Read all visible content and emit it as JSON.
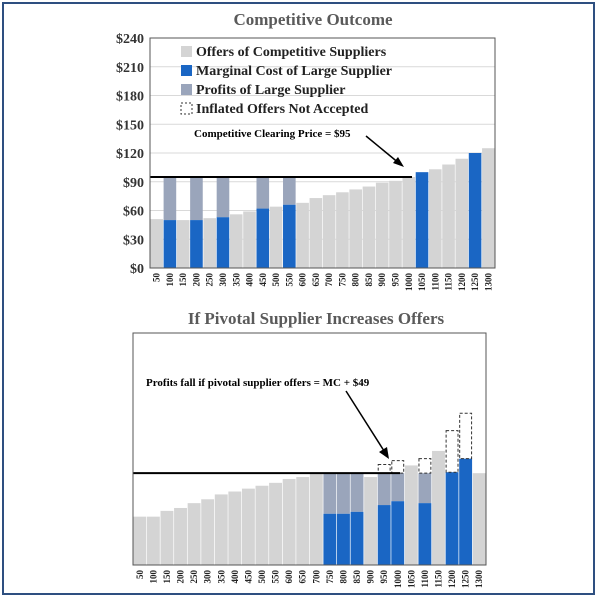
{
  "colors": {
    "competitive": "#d4d4d4",
    "mc": "#1a66c4",
    "profit": "#9aa5bb",
    "line": "#000000"
  },
  "chart_data": [
    {
      "type": "bar",
      "title": "Competitive Outcome",
      "ylim": [
        0,
        240
      ],
      "yticks": [
        0,
        30,
        60,
        90,
        120,
        150,
        180,
        210,
        240
      ],
      "ytick_labels": [
        "$0",
        "$30",
        "$60",
        "$90",
        "$120",
        "$150",
        "$180",
        "$210",
        "$240"
      ],
      "xtick_labels": [
        "50",
        "100",
        "150",
        "200",
        "250",
        "300",
        "350",
        "400",
        "450",
        "500",
        "550",
        "600",
        "650",
        "700",
        "750",
        "800",
        "850",
        "900",
        "950",
        "1000",
        "1050",
        "1100",
        "1150",
        "1200",
        "1250",
        "1300"
      ],
      "clearing_price": 95,
      "legend": [
        {
          "label": "Offers of Competitive Suppliers",
          "key": "competitive"
        },
        {
          "label": "Marginal Cost of Large Supplier",
          "key": "mc"
        },
        {
          "label": "Profits of Large Supplier",
          "key": "profit"
        },
        {
          "label": "Inflated Offers Not Accepted",
          "key": "inflated"
        }
      ],
      "annotation": "Competitive Clearing Price = $95",
      "bars": [
        {
          "owner": "competitive",
          "offer": 51
        },
        {
          "owner": "large",
          "offer": 50
        },
        {
          "owner": "competitive",
          "offer": 50
        },
        {
          "owner": "large",
          "offer": 50
        },
        {
          "owner": "competitive",
          "offer": 52
        },
        {
          "owner": "large",
          "offer": 53
        },
        {
          "owner": "competitive",
          "offer": 56
        },
        {
          "owner": "competitive",
          "offer": 59
        },
        {
          "owner": "large",
          "offer": 62
        },
        {
          "owner": "competitive",
          "offer": 64
        },
        {
          "owner": "large",
          "offer": 66
        },
        {
          "owner": "competitive",
          "offer": 68
        },
        {
          "owner": "competitive",
          "offer": 73
        },
        {
          "owner": "competitive",
          "offer": 76
        },
        {
          "owner": "competitive",
          "offer": 79
        },
        {
          "owner": "competitive",
          "offer": 82
        },
        {
          "owner": "competitive",
          "offer": 85
        },
        {
          "owner": "competitive",
          "offer": 89
        },
        {
          "owner": "competitive",
          "offer": 91
        },
        {
          "owner": "competitive",
          "offer": 95
        },
        {
          "owner": "large",
          "offer": 100
        },
        {
          "owner": "competitive",
          "offer": 103
        },
        {
          "owner": "competitive",
          "offer": 108
        },
        {
          "owner": "competitive",
          "offer": 114
        },
        {
          "owner": "large",
          "offer": 120
        },
        {
          "owner": "competitive",
          "offer": 125
        }
      ]
    },
    {
      "type": "bar",
      "title": "If Pivotal Supplier Increases Offers",
      "ylim": [
        0,
        240
      ],
      "xtick_labels": [
        "50",
        "100",
        "150",
        "200",
        "250",
        "300",
        "350",
        "400",
        "450",
        "500",
        "550",
        "600",
        "650",
        "700",
        "750",
        "800",
        "850",
        "900",
        "950",
        "1000",
        "1050",
        "1100",
        "1150",
        "1200",
        "1250",
        "1300"
      ],
      "clearing_price": 95,
      "annotation": "Profits fall if pivotal supplier offers = MC + $49",
      "bars": [
        {
          "owner": "competitive",
          "offer": 50
        },
        {
          "owner": "competitive",
          "offer": 50
        },
        {
          "owner": "competitive",
          "offer": 56
        },
        {
          "owner": "competitive",
          "offer": 59
        },
        {
          "owner": "competitive",
          "offer": 64
        },
        {
          "owner": "competitive",
          "offer": 68
        },
        {
          "owner": "competitive",
          "offer": 73
        },
        {
          "owner": "competitive",
          "offer": 76
        },
        {
          "owner": "competitive",
          "offer": 79
        },
        {
          "owner": "competitive",
          "offer": 82
        },
        {
          "owner": "competitive",
          "offer": 85
        },
        {
          "owner": "competitive",
          "offer": 89
        },
        {
          "owner": "competitive",
          "offer": 91
        },
        {
          "owner": "competitive",
          "offer": 95
        },
        {
          "owner": "large",
          "mc": 53,
          "offer": 95
        },
        {
          "owner": "large",
          "mc": 53,
          "offer": 95
        },
        {
          "owner": "large",
          "mc": 55,
          "offer": 95
        },
        {
          "owner": "competitive",
          "offer": 91
        },
        {
          "owner": "large",
          "mc": 62,
          "offer": 95,
          "inflated": 104
        },
        {
          "owner": "large",
          "mc": 66,
          "offer": 95,
          "inflated": 108
        },
        {
          "owner": "competitive",
          "offer": 103
        },
        {
          "owner": "large",
          "mc": 64,
          "offer": 95,
          "inflated": 110
        },
        {
          "owner": "competitive",
          "offer": 118
        },
        {
          "owner": "large",
          "mc": 96,
          "offer": 95,
          "inflated": 139
        },
        {
          "owner": "large",
          "mc": 110,
          "offer": 110,
          "inflated": 157
        },
        {
          "owner": "competitive",
          "offer": 95
        }
      ]
    }
  ]
}
